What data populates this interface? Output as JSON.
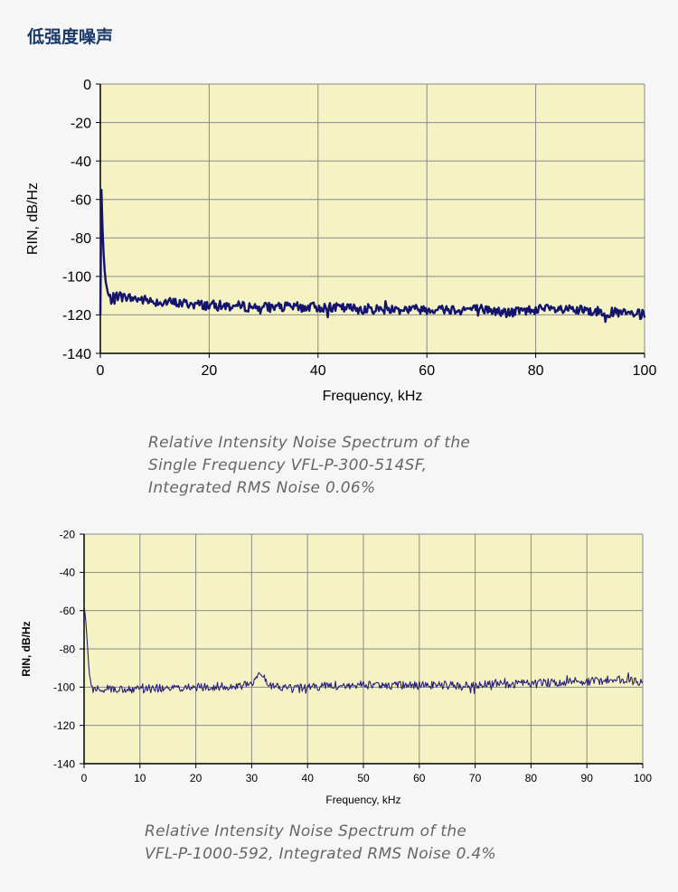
{
  "page": {
    "title": "低强度噪声"
  },
  "chart_data": [
    {
      "type": "line",
      "xlabel": "Frequency, kHz",
      "ylabel": "RIN, dB/Hz",
      "xlim": [
        0,
        100
      ],
      "ylim": [
        -140,
        0
      ],
      "x_ticks": [
        0,
        20,
        40,
        60,
        80,
        100
      ],
      "y_ticks": [
        0,
        -20,
        -40,
        -60,
        -80,
        -100,
        -120,
        -140
      ],
      "grid": true,
      "plot_background": "#f5f2c3",
      "line_color": "#14146e",
      "caption_lines": [
        "Relative Intensity Noise Spectrum of the",
        "Single Frequency VFL-P-300-514SF,",
        "Integrated RMS Noise 0.06%"
      ],
      "series": [
        {
          "x": [
            0,
            0.2,
            0.4,
            0.6,
            0.8,
            1.0,
            1.3,
            1.6,
            2.0,
            2.5,
            3,
            5,
            10,
            15,
            20,
            30,
            40,
            50,
            60,
            70,
            75,
            80,
            90,
            100
          ],
          "values": [
            -120,
            -55,
            -75,
            -88,
            -97,
            -103,
            -108,
            -111,
            -112,
            -111,
            -110,
            -111,
            -113,
            -114,
            -115,
            -116,
            -116,
            -117,
            -117,
            -117,
            -119,
            -117,
            -118,
            -120
          ]
        }
      ]
    },
    {
      "type": "line",
      "xlabel": "Frequency, kHz",
      "ylabel": "RIN, dB/Hz",
      "xlim": [
        0,
        100
      ],
      "ylim": [
        -140,
        -20
      ],
      "x_ticks": [
        0,
        10,
        20,
        30,
        40,
        50,
        60,
        70,
        80,
        90,
        100
      ],
      "y_ticks": [
        -20,
        -40,
        -60,
        -80,
        -100,
        -120,
        -140
      ],
      "grid": true,
      "plot_background": "#f5f2c3",
      "line_color": "#2a1f7a",
      "caption_lines": [
        "Relative Intensity Noise Spectrum of the",
        "VFL-P-1000-592, Integrated RMS Noise 0.4%"
      ],
      "series": [
        {
          "x": [
            0,
            0.3,
            0.6,
            0.9,
            1.2,
            1.6,
            2,
            5,
            10,
            20,
            30,
            31.5,
            33,
            38,
            40,
            50,
            60,
            70,
            80,
            90,
            95,
            100
          ],
          "values": [
            -57,
            -65,
            -78,
            -92,
            -99,
            -101,
            -101,
            -101,
            -101,
            -100,
            -99,
            -91,
            -99,
            -101,
            -100,
            -99,
            -99,
            -99,
            -98,
            -97,
            -96,
            -97
          ]
        }
      ]
    }
  ]
}
